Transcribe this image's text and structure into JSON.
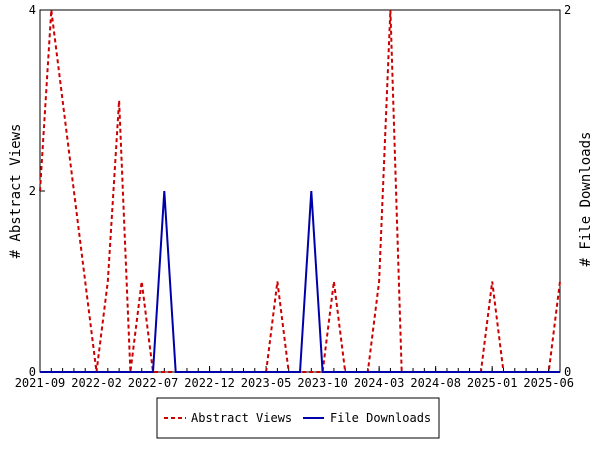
{
  "chart_data": {
    "type": "line",
    "x_ticks": [
      "2021-09",
      "2022-02",
      "2022-07",
      "2022-12",
      "2023-05",
      "2023-10",
      "2024-03",
      "2024-08",
      "2025-01",
      "2025-06"
    ],
    "x_range": [
      "2021-09",
      "2025-07"
    ],
    "y_left": {
      "label": "# Abstract Views",
      "ticks": [
        "0",
        "2",
        "4"
      ],
      "range": [
        0,
        4
      ]
    },
    "y_right": {
      "label": "# File Downloads",
      "ticks": [
        "0",
        "2"
      ],
      "range": [
        0,
        2
      ]
    },
    "grid": false,
    "legend_position": "bottom",
    "series": [
      {
        "name": "Abstract Views",
        "axis": "left",
        "color": "#cc0000",
        "style": "dashed",
        "points": [
          [
            "2021-09",
            2
          ],
          [
            "2021-10",
            4
          ],
          [
            "2021-11",
            3
          ],
          [
            "2021-12",
            2
          ],
          [
            "2022-01",
            1
          ],
          [
            "2022-02",
            0
          ],
          [
            "2022-03",
            1
          ],
          [
            "2022-04",
            3
          ],
          [
            "2022-05",
            0
          ],
          [
            "2022-06",
            1
          ],
          [
            "2022-07",
            0
          ],
          [
            "2022-08",
            0
          ],
          [
            "2022-09",
            0
          ],
          [
            "2022-10",
            0
          ],
          [
            "2022-11",
            0
          ],
          [
            "2022-12",
            0
          ],
          [
            "2023-01",
            0
          ],
          [
            "2023-02",
            0
          ],
          [
            "2023-03",
            0
          ],
          [
            "2023-04",
            0
          ],
          [
            "2023-05",
            0
          ],
          [
            "2023-06",
            1
          ],
          [
            "2023-07",
            0
          ],
          [
            "2023-08",
            0
          ],
          [
            "2023-09",
            0
          ],
          [
            "2023-10",
            0
          ],
          [
            "2023-11",
            1
          ],
          [
            "2023-12",
            0
          ],
          [
            "2024-01",
            0
          ],
          [
            "2024-02",
            0
          ],
          [
            "2024-03",
            1
          ],
          [
            "2024-04",
            4
          ],
          [
            "2024-05",
            0
          ],
          [
            "2024-06",
            0
          ],
          [
            "2024-07",
            0
          ],
          [
            "2024-08",
            0
          ],
          [
            "2024-09",
            0
          ],
          [
            "2024-10",
            0
          ],
          [
            "2024-11",
            0
          ],
          [
            "2024-12",
            0
          ],
          [
            "2025-01",
            1
          ],
          [
            "2025-02",
            0
          ],
          [
            "2025-03",
            0
          ],
          [
            "2025-04",
            0
          ],
          [
            "2025-05",
            0
          ],
          [
            "2025-06",
            0
          ],
          [
            "2025-07",
            1
          ]
        ]
      },
      {
        "name": "File Downloads",
        "axis": "right",
        "color": "#0000aa",
        "style": "solid",
        "points": [
          [
            "2021-09",
            0
          ],
          [
            "2021-10",
            0
          ],
          [
            "2021-11",
            0
          ],
          [
            "2021-12",
            0
          ],
          [
            "2022-01",
            0
          ],
          [
            "2022-02",
            0
          ],
          [
            "2022-03",
            0
          ],
          [
            "2022-04",
            0
          ],
          [
            "2022-05",
            0
          ],
          [
            "2022-06",
            0
          ],
          [
            "2022-07",
            0
          ],
          [
            "2022-08",
            1
          ],
          [
            "2022-09",
            0
          ],
          [
            "2022-10",
            0
          ],
          [
            "2022-11",
            0
          ],
          [
            "2022-12",
            0
          ],
          [
            "2023-01",
            0
          ],
          [
            "2023-02",
            0
          ],
          [
            "2023-03",
            0
          ],
          [
            "2023-04",
            0
          ],
          [
            "2023-05",
            0
          ],
          [
            "2023-06",
            0
          ],
          [
            "2023-07",
            0
          ],
          [
            "2023-08",
            0
          ],
          [
            "2023-09",
            1
          ],
          [
            "2023-10",
            0
          ],
          [
            "2023-11",
            0
          ],
          [
            "2023-12",
            0
          ],
          [
            "2024-01",
            0
          ],
          [
            "2024-02",
            0
          ],
          [
            "2024-03",
            0
          ],
          [
            "2024-04",
            0
          ],
          [
            "2024-05",
            0
          ],
          [
            "2024-06",
            0
          ],
          [
            "2024-07",
            0
          ],
          [
            "2024-08",
            0
          ],
          [
            "2024-09",
            0
          ],
          [
            "2024-10",
            0
          ],
          [
            "2024-11",
            0
          ],
          [
            "2024-12",
            0
          ],
          [
            "2025-01",
            0
          ],
          [
            "2025-02",
            0
          ],
          [
            "2025-03",
            0
          ],
          [
            "2025-04",
            0
          ],
          [
            "2025-05",
            0
          ],
          [
            "2025-06",
            0
          ],
          [
            "2025-07",
            0
          ]
        ]
      }
    ]
  }
}
